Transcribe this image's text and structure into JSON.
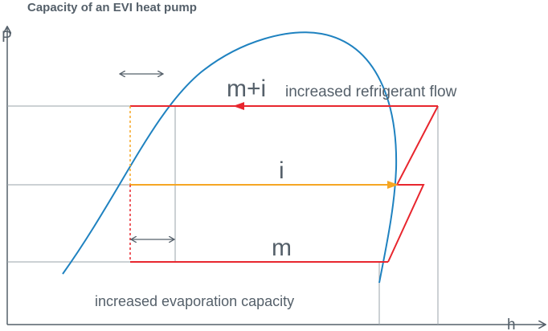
{
  "title": "Capacity of an EVI heat pump",
  "axes": {
    "y_label": "P",
    "x_label": "h"
  },
  "labels": {
    "upper_flow_symbol": "m+i",
    "upper_flow_text": "increased refrigerant flow",
    "injection_symbol": "i",
    "lower_flow_symbol": "m",
    "evaporation_text": "increased evaporation capacity"
  },
  "colors": {
    "refrigerant_flow": "#e8262e",
    "injection_flow": "#f5a623",
    "saturation_dome": "#1f82c0",
    "axis": "#55606a",
    "grid": "#9aa3aa"
  }
}
